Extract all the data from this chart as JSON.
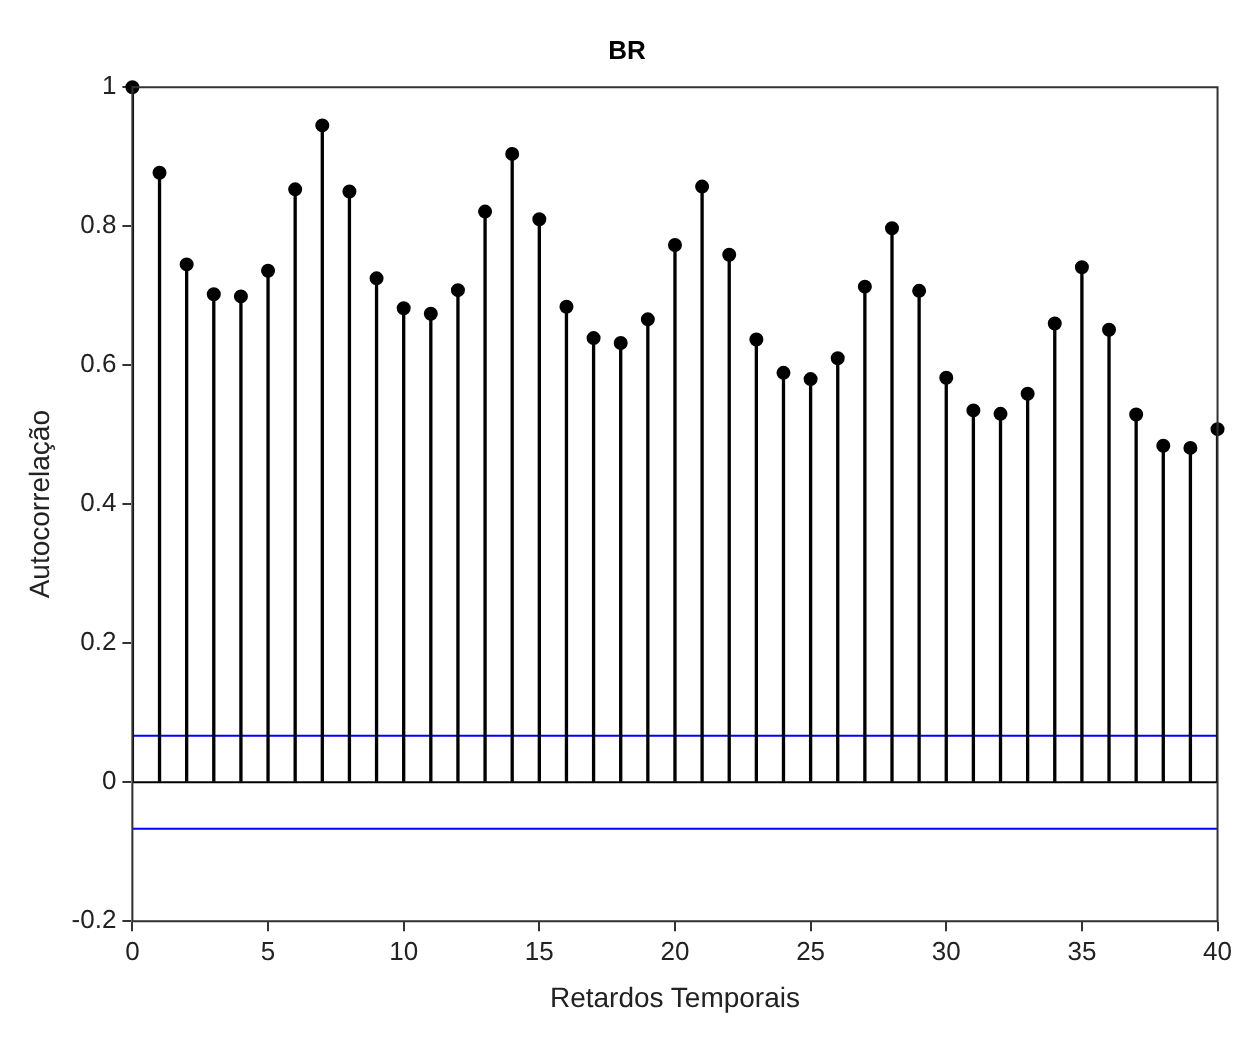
{
  "chart_data": {
    "type": "lollipop",
    "title": "BR",
    "xlabel": "Retardos Temporais",
    "ylabel": "Autocorrelação",
    "x": [
      0,
      1,
      2,
      3,
      4,
      5,
      6,
      7,
      8,
      9,
      10,
      11,
      12,
      13,
      14,
      15,
      16,
      17,
      18,
      19,
      20,
      21,
      22,
      23,
      24,
      25,
      26,
      27,
      28,
      29,
      30,
      31,
      32,
      33,
      34,
      35,
      36,
      37,
      38,
      39,
      40
    ],
    "values": [
      1,
      0.877,
      0.745,
      0.702,
      0.699,
      0.736,
      0.853,
      0.945,
      0.85,
      0.725,
      0.682,
      0.674,
      0.708,
      0.821,
      0.904,
      0.81,
      0.684,
      0.639,
      0.632,
      0.666,
      0.773,
      0.857,
      0.759,
      0.637,
      0.589,
      0.58,
      0.61,
      0.713,
      0.797,
      0.707,
      0.582,
      0.535,
      0.53,
      0.559,
      0.66,
      0.741,
      0.651,
      0.529,
      0.484,
      0.481,
      0.508
    ],
    "color": "#000000",
    "marker": "circle",
    "grid": false,
    "legend": false,
    "xlim": [
      0,
      40
    ],
    "xticks": [
      0,
      5,
      10,
      15,
      20,
      25,
      30,
      35,
      40
    ],
    "ylim": [
      -0.2,
      1
    ],
    "yticks": [
      -0.2,
      0,
      0.2,
      0.4,
      0.6,
      0.8,
      1
    ],
    "ref_lines": [
      {
        "axis": "y",
        "value": 0.067,
        "color": "#0000ff"
      },
      {
        "axis": "y",
        "value": -0.067,
        "color": "#0000ff"
      },
      {
        "axis": "y",
        "value": 0,
        "color": "#000000"
      }
    ]
  }
}
